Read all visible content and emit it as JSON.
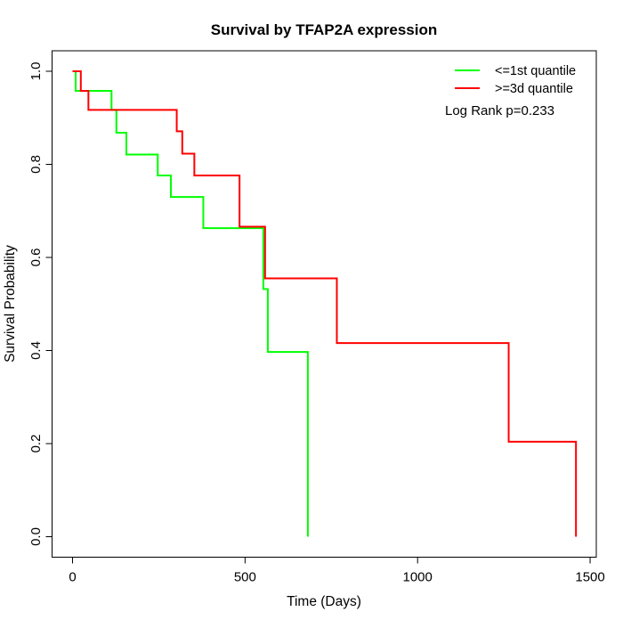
{
  "chart_data": {
    "type": "line",
    "subtype": "kaplan-meier-step",
    "title": "Survival by TFAP2A expression",
    "xlabel": "Time (Days)",
    "ylabel": "Survival Probability",
    "xlim": [
      0,
      1500
    ],
    "ylim": [
      0.0,
      1.0
    ],
    "x_ticks": [
      0,
      500,
      1000,
      1500
    ],
    "x_tick_labels": [
      "0",
      "500",
      "1000",
      "1500"
    ],
    "y_ticks": [
      0.0,
      0.2,
      0.4,
      0.6,
      0.8,
      1.0
    ],
    "y_tick_labels": [
      "0.0",
      "0.2",
      "0.4",
      "0.6",
      "0.8",
      "1.0"
    ],
    "grid": false,
    "legend_position": "top-right",
    "annotation": "Log Rank p=0.233",
    "series": [
      {
        "name": "<=1st quantile",
        "color": "#00FF00",
        "steps": [
          [
            0,
            1.0
          ],
          [
            9,
            0.958
          ],
          [
            113,
            0.917
          ],
          [
            127,
            0.868
          ],
          [
            156,
            0.821
          ],
          [
            247,
            0.776
          ],
          [
            285,
            0.73
          ],
          [
            379,
            0.663
          ],
          [
            553,
            0.532
          ],
          [
            566,
            0.397
          ],
          [
            682,
            0.0
          ]
        ]
      },
      {
        "name": ">=3d quantile",
        "color": "#FF0000",
        "steps": [
          [
            0,
            1.0
          ],
          [
            24,
            0.958
          ],
          [
            46,
            0.917
          ],
          [
            302,
            0.871
          ],
          [
            318,
            0.823
          ],
          [
            353,
            0.776
          ],
          [
            484,
            0.666
          ],
          [
            558,
            0.555
          ],
          [
            766,
            0.416
          ],
          [
            1264,
            0.204
          ],
          [
            1459,
            0.0
          ]
        ]
      }
    ]
  }
}
